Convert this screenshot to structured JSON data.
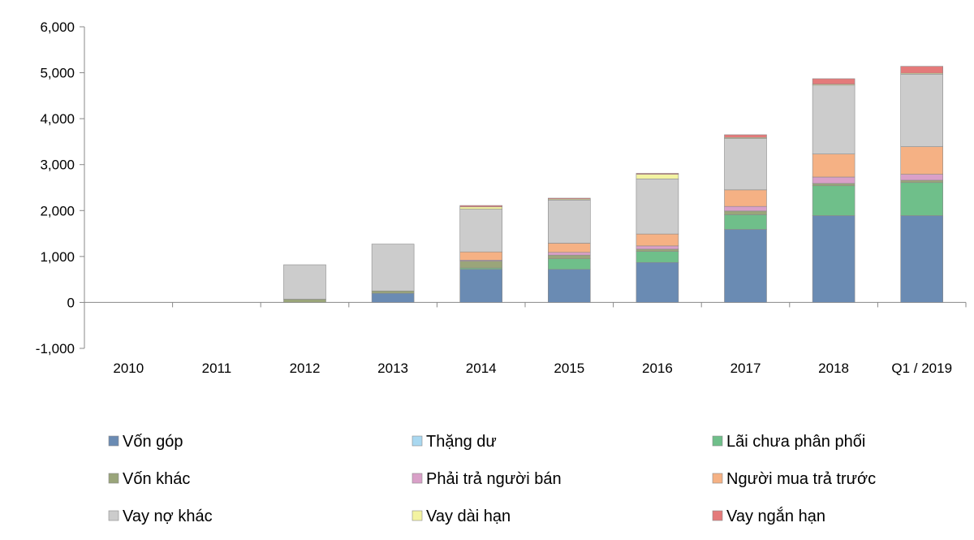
{
  "chart_data": {
    "type": "bar",
    "stacked": true,
    "title": "",
    "xlabel": "",
    "ylabel": "",
    "ylim": [
      -1000,
      6000
    ],
    "yticks": [
      "-1,000",
      "0",
      "1,000",
      "2,000",
      "3,000",
      "4,000",
      "5,000",
      "6,000"
    ],
    "ytick_values": [
      -1000,
      0,
      1000,
      2000,
      3000,
      4000,
      5000,
      6000
    ],
    "categories": [
      "2010",
      "2011",
      "2012",
      "2013",
      "2014",
      "2015",
      "2016",
      "2017",
      "2018",
      "Q1 / 2019"
    ],
    "grid": false,
    "legend_position": "bottom",
    "series": [
      {
        "name": "Vốn góp",
        "color": "#6a8bb3",
        "values": [
          0,
          0,
          0,
          200,
          720,
          720,
          870,
          1590,
          1890,
          1890
        ]
      },
      {
        "name": "Thặng dư",
        "color": "#a9d8f0",
        "values": [
          0,
          0,
          0,
          0,
          0,
          0,
          0,
          0,
          0,
          0
        ]
      },
      {
        "name": "Lãi chưa phân phối",
        "color": "#6fbf8a",
        "values": [
          0,
          0,
          0,
          0,
          30,
          230,
          240,
          320,
          650,
          720
        ]
      },
      {
        "name": "Vốn khác",
        "color": "#9aa57a",
        "values": [
          0,
          0,
          70,
          50,
          150,
          80,
          50,
          80,
          50,
          50
        ]
      },
      {
        "name": "Phải trả người bán",
        "color": "#d9a0c8",
        "values": [
          0,
          0,
          0,
          0,
          20,
          60,
          70,
          100,
          140,
          130
        ]
      },
      {
        "name": "Người mua trả trước",
        "color": "#f5b184",
        "values": [
          0,
          0,
          0,
          0,
          180,
          200,
          260,
          360,
          500,
          600
        ]
      },
      {
        "name": "Vay nợ khác",
        "color": "#cccccc",
        "values": [
          0,
          0,
          750,
          1020,
          930,
          940,
          1200,
          1120,
          1500,
          1580
        ]
      },
      {
        "name": "Vay dài hạn",
        "color": "#f3f3a2",
        "values": [
          0,
          0,
          0,
          0,
          50,
          20,
          100,
          20,
          20,
          20
        ]
      },
      {
        "name": "Vay ngắn hạn",
        "color": "#e47a7a",
        "values": [
          0,
          0,
          0,
          0,
          30,
          20,
          20,
          60,
          120,
          150
        ]
      }
    ]
  }
}
